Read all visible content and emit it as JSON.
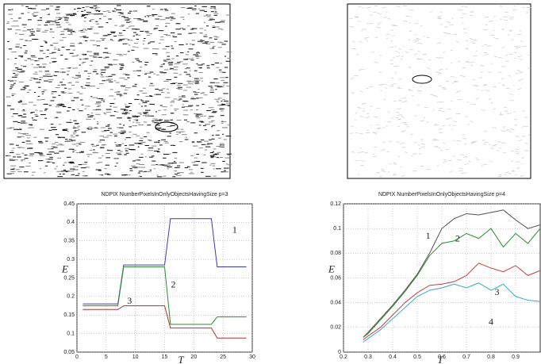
{
  "chart_data": [
    {
      "type": "line",
      "title": "NDPIX NumberPixelsInOnlyObjectsHavingSize p=3",
      "ylabel": "E",
      "xlabel": "T",
      "x": [
        1,
        7,
        8,
        15,
        16,
        23,
        24,
        29
      ],
      "series": [
        {
          "name": "1",
          "color": "#3b3bb0",
          "values": [
            0.18,
            0.18,
            0.285,
            0.285,
            0.41,
            0.41,
            0.28,
            0.28
          ]
        },
        {
          "name": "2",
          "color": "#2e8b2e",
          "values": [
            0.175,
            0.175,
            0.28,
            0.28,
            0.125,
            0.125,
            0.145,
            0.145
          ]
        },
        {
          "name": "3",
          "color": "#b03030",
          "values": [
            0.165,
            0.165,
            0.175,
            0.175,
            0.115,
            0.115,
            0.088,
            0.088
          ]
        }
      ],
      "xlim": [
        0,
        30
      ],
      "xticks": [
        0,
        5,
        10,
        15,
        20,
        25,
        30
      ],
      "ylim": [
        0.05,
        0.45
      ],
      "yticks": [
        0.05,
        0.1,
        0.15,
        0.2,
        0.25,
        0.3,
        0.35,
        0.4,
        0.45
      ],
      "grid": true
    },
    {
      "type": "line",
      "title": "NDPIX NumberPixelsInOnlyObjectsHavingSize p=4",
      "ylabel": "E",
      "xlabel": "T",
      "x": [
        0.28,
        0.3,
        0.35,
        0.4,
        0.45,
        0.5,
        0.55,
        0.6,
        0.65,
        0.7,
        0.75,
        0.8,
        0.85,
        0.9,
        0.95,
        1.0
      ],
      "series": [
        {
          "name": "1",
          "color": "#505050",
          "values": [
            0.012,
            0.016,
            0.027,
            0.038,
            0.05,
            0.063,
            0.08,
            0.1,
            0.108,
            0.112,
            0.111,
            0.113,
            0.115,
            0.107,
            0.1,
            0.103
          ]
        },
        {
          "name": "2",
          "color": "#2e8b2e",
          "values": [
            0.012,
            0.015,
            0.026,
            0.037,
            0.049,
            0.062,
            0.078,
            0.088,
            0.09,
            0.096,
            0.092,
            0.1,
            0.085,
            0.096,
            0.088,
            0.1
          ]
        },
        {
          "name": "3",
          "color": "#c04040",
          "values": [
            0.01,
            0.013,
            0.02,
            0.03,
            0.04,
            0.048,
            0.054,
            0.055,
            0.057,
            0.062,
            0.072,
            0.068,
            0.065,
            0.07,
            0.062,
            0.066
          ]
        },
        {
          "name": "4",
          "color": "#3aa8c8",
          "values": [
            0.008,
            0.011,
            0.018,
            0.027,
            0.036,
            0.045,
            0.05,
            0.052,
            0.055,
            0.052,
            0.056,
            0.05,
            0.055,
            0.045,
            0.042,
            0.041
          ]
        }
      ],
      "xlim": [
        0.2,
        1.0
      ],
      "xticks": [
        0.2,
        0.3,
        0.4,
        0.5,
        0.6,
        0.7,
        0.8,
        0.9
      ],
      "ylim": [
        0,
        0.12
      ],
      "yticks": [
        0,
        0.02,
        0.04,
        0.06,
        0.08,
        0.1,
        0.12
      ],
      "grid": true
    }
  ]
}
